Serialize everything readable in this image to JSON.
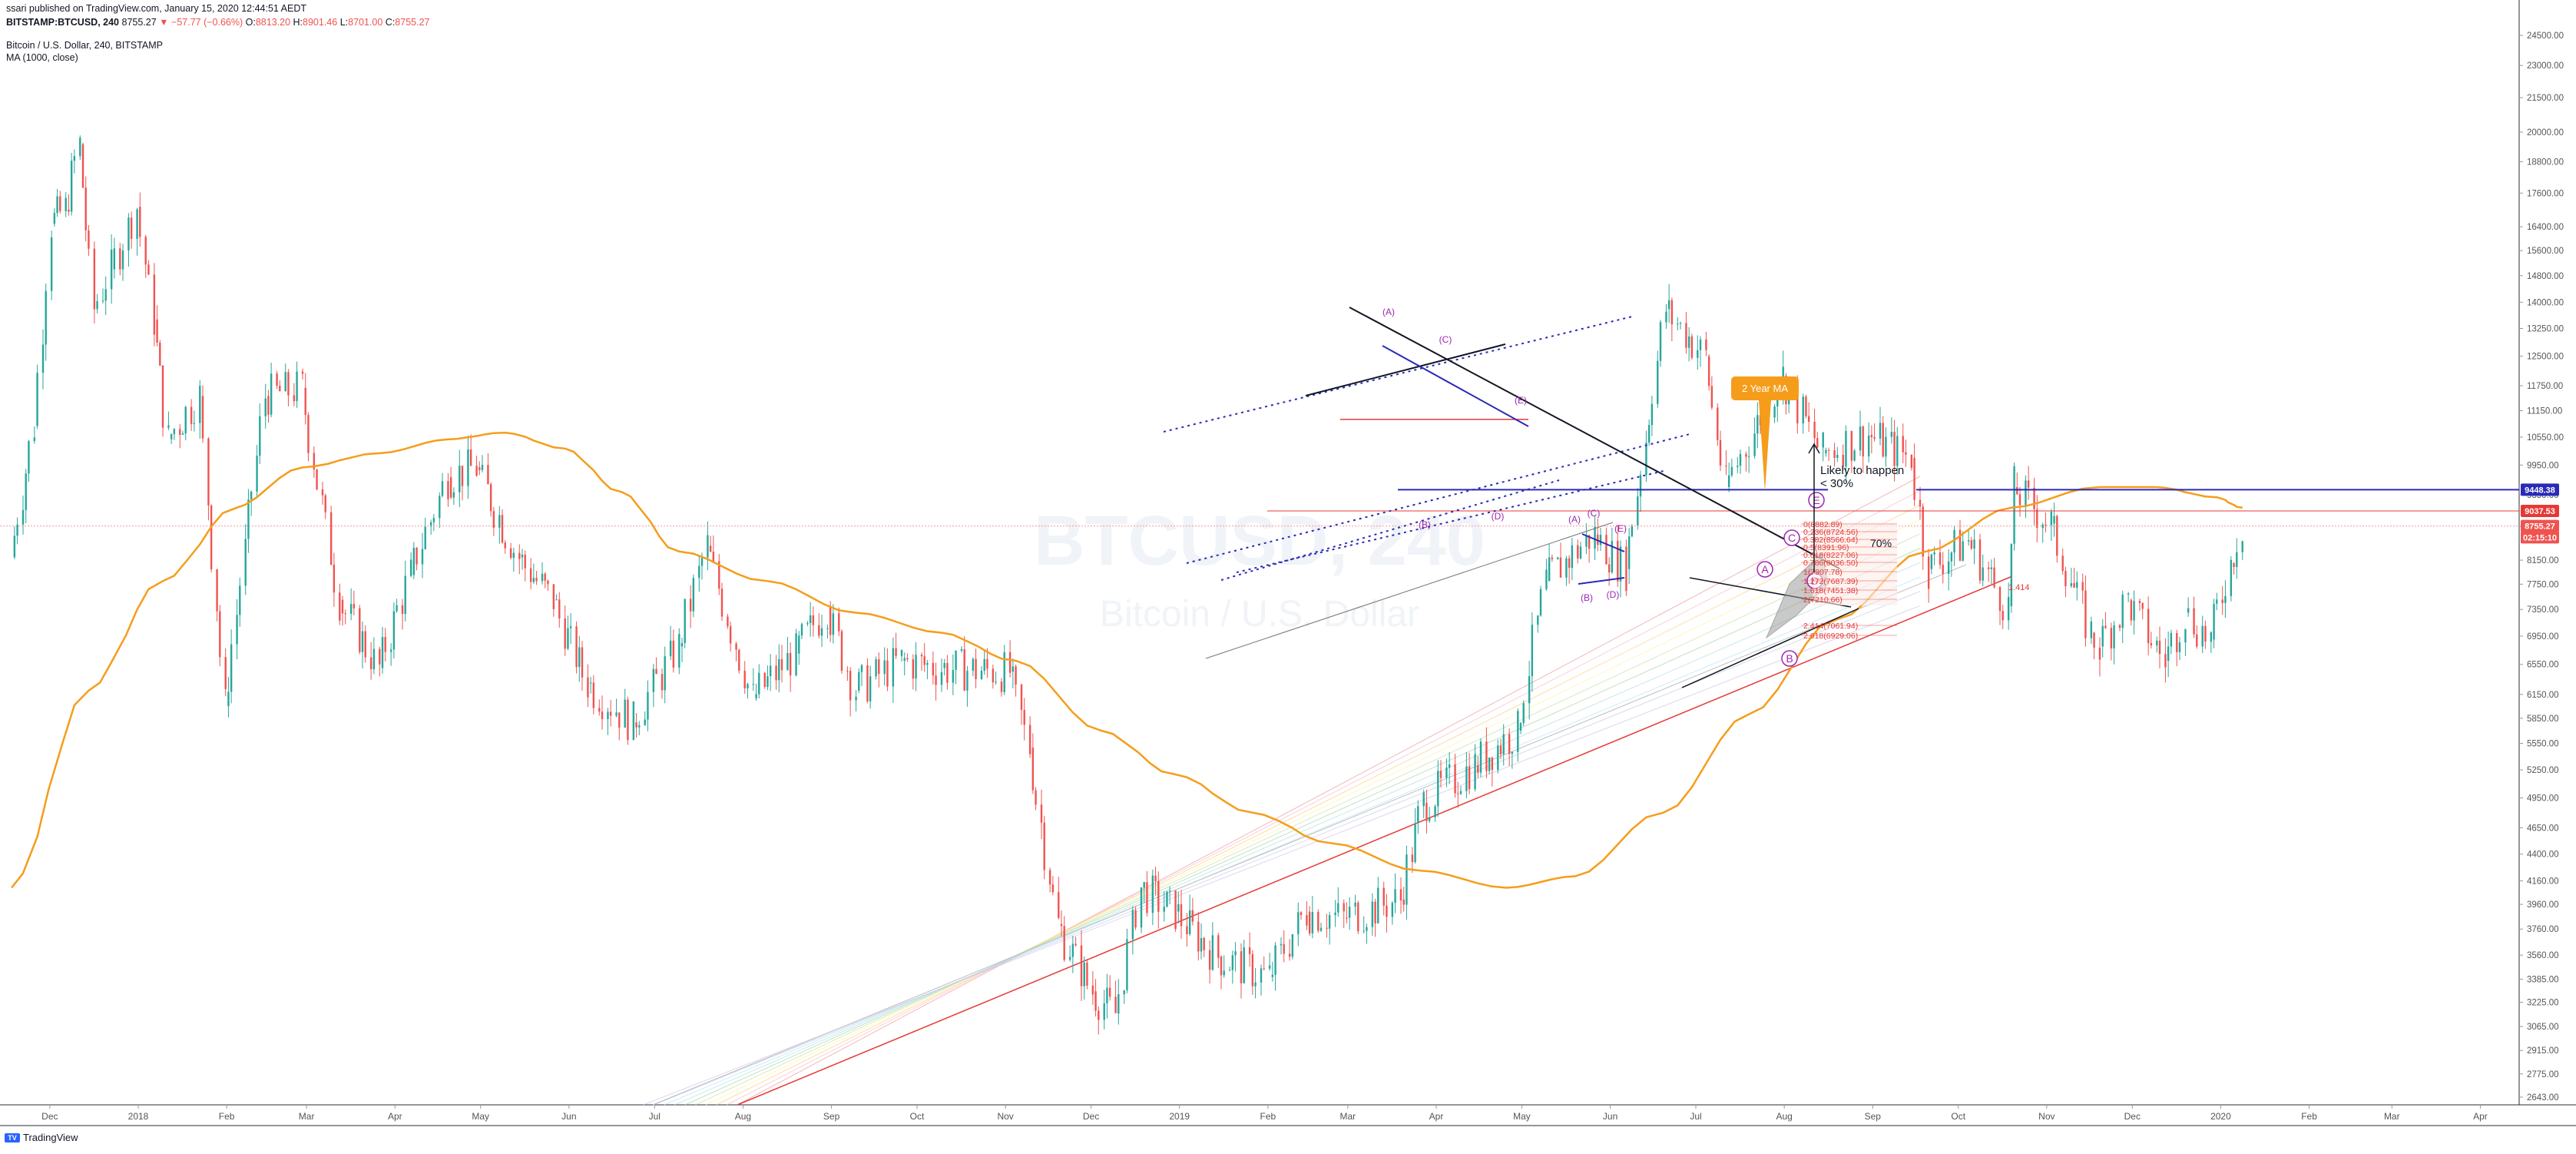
{
  "header": {
    "publisher_line": "ssari published on TradingView.com, January 15, 2020 12:44:51 AEDT",
    "symbol": "BITSTAMP:BTCUSD, 240",
    "last": "8755.27",
    "change": "−57.77 (−0.66%)",
    "o_label": "O:",
    "o_value": "8813.20",
    "h_label": "H:",
    "h_value": "8901.46",
    "l_label": "L:",
    "l_value": "8701.00",
    "c_label": "C:",
    "c_value": "8755.27",
    "legend_title": "Bitcoin / U.S. Dollar, 240, BITSTAMP",
    "legend_ma": "MA (1000, close)"
  },
  "watermark": {
    "symbol": "BTCUSD, 240",
    "name": "Bitcoin / U.S. Dollar"
  },
  "footer": {
    "brand": "TradingView"
  },
  "colors": {
    "candle_up": "#26a69a",
    "candle_down": "#ef5350",
    "ma": "#f59d1b",
    "trendline": "#131722",
    "blue_line": "#2a2ab8",
    "wave_label": "#9c27b0",
    "fib_red": "#e53935",
    "callout_bg": "#f59d1b"
  },
  "chart_data": {
    "type": "line",
    "title": "Bitcoin / U.S. Dollar, 240, BITSTAMP",
    "xlabel": "",
    "ylabel": "",
    "y_scale": "log",
    "ylim": [
      2550,
      25500
    ],
    "x_ticks": [
      "Dec",
      "2018",
      "Feb",
      "Mar",
      "Apr",
      "May",
      "Jun",
      "Jul",
      "Aug",
      "Sep",
      "Oct",
      "Nov",
      "Dec",
      "2019",
      "Feb",
      "Mar",
      "Apr",
      "May",
      "Jun",
      "Jul",
      "Aug",
      "Sep",
      "Oct",
      "Nov",
      "Dec",
      "2020",
      "Feb",
      "Mar",
      "Apr"
    ],
    "y_ticks": [
      "24500.00",
      "23000.00",
      "21500.00",
      "20000.00",
      "18800.00",
      "17600.00",
      "16400.00",
      "15600.00",
      "14800.00",
      "14000.00",
      "13250.00",
      "12500.00",
      "11750.00",
      "11150.00",
      "10550.00",
      "9950.00",
      "9350.00",
      "8750.00",
      "8150.00",
      "7750.00",
      "7350.00",
      "6950.00",
      "6550.00",
      "6150.00",
      "5850.00",
      "5550.00",
      "5250.00",
      "4950.00",
      "4650.00",
      "4400.00",
      "4160.00",
      "3960.00",
      "3760.00",
      "3560.00",
      "3385.00",
      "3225.00",
      "3065.00",
      "2915.00",
      "2775.00",
      "2643.00"
    ],
    "series": [
      {
        "name": "BTCUSD",
        "points": [
          [
            "2017-11-23",
            8200
          ],
          [
            "2017-12-01",
            10800
          ],
          [
            "2017-12-07",
            16500
          ],
          [
            "2017-12-12",
            17000
          ],
          [
            "2017-12-17",
            19500
          ],
          [
            "2017-12-22",
            13800
          ],
          [
            "2017-12-28",
            15000
          ],
          [
            "2018-01-06",
            17100
          ],
          [
            "2018-01-12",
            13500
          ],
          [
            "2018-01-17",
            10500
          ],
          [
            "2018-01-28",
            11500
          ],
          [
            "2018-02-06",
            6000
          ],
          [
            "2018-02-20",
            11500
          ],
          [
            "2018-03-05",
            11700
          ],
          [
            "2018-03-18",
            7500
          ],
          [
            "2018-04-01",
            6500
          ],
          [
            "2018-04-12",
            7900
          ],
          [
            "2018-04-25",
            9700
          ],
          [
            "2018-05-05",
            9900
          ],
          [
            "2018-05-20",
            8200
          ],
          [
            "2018-06-01",
            7500
          ],
          [
            "2018-06-13",
            6300
          ],
          [
            "2018-06-29",
            5800
          ],
          [
            "2018-07-15",
            6800
          ],
          [
            "2018-07-25",
            8400
          ],
          [
            "2018-08-10",
            6100
          ],
          [
            "2018-08-25",
            6700
          ],
          [
            "2018-09-05",
            7400
          ],
          [
            "2018-09-15",
            6200
          ],
          [
            "2018-10-01",
            6600
          ],
          [
            "2018-10-15",
            6500
          ],
          [
            "2018-11-08",
            6450
          ],
          [
            "2018-11-15",
            5500
          ],
          [
            "2018-11-25",
            3800
          ],
          [
            "2018-12-07",
            3300
          ],
          [
            "2018-12-15",
            3150
          ],
          [
            "2018-12-24",
            4100
          ],
          [
            "2019-01-05",
            3900
          ],
          [
            "2019-01-20",
            3550
          ],
          [
            "2019-02-07",
            3400
          ],
          [
            "2019-02-20",
            3900
          ],
          [
            "2019-03-05",
            3850
          ],
          [
            "2019-03-25",
            4000
          ],
          [
            "2019-04-02",
            4900
          ],
          [
            "2019-04-20",
            5300
          ],
          [
            "2019-05-05",
            5700
          ],
          [
            "2019-05-15",
            7800
          ],
          [
            "2019-06-01",
            8600
          ],
          [
            "2019-06-12",
            8000
          ],
          [
            "2019-06-26",
            13800
          ],
          [
            "2019-07-10",
            12500
          ],
          [
            "2019-07-17",
            9500
          ],
          [
            "2019-08-06",
            12000
          ],
          [
            "2019-08-20",
            10200
          ],
          [
            "2019-09-05",
            10600
          ],
          [
            "2019-09-20",
            10100
          ],
          [
            "2019-09-26",
            8000
          ],
          [
            "2019-10-10",
            8500
          ],
          [
            "2019-10-24",
            7400
          ],
          [
            "2019-10-26",
            9500
          ],
          [
            "2019-11-08",
            8800
          ],
          [
            "2019-11-22",
            7000
          ],
          [
            "2019-11-25",
            6800
          ],
          [
            "2019-12-05",
            7500
          ],
          [
            "2019-12-18",
            6600
          ],
          [
            "2019-12-25",
            7300
          ],
          [
            "2020-01-03",
            6900
          ],
          [
            "2020-01-10",
            8100
          ],
          [
            "2020-01-14",
            8755
          ]
        ]
      },
      {
        "name": "MA (1000, close)",
        "points": [
          [
            "2017-11-23",
            4100
          ],
          [
            "2017-12-20",
            6200
          ],
          [
            "2018-01-15",
            7800
          ],
          [
            "2018-02-10",
            9100
          ],
          [
            "2018-03-05",
            9900
          ],
          [
            "2018-04-01",
            10200
          ],
          [
            "2018-04-25",
            10500
          ],
          [
            "2018-05-15",
            10650
          ],
          [
            "2018-06-05",
            10300
          ],
          [
            "2018-06-25",
            9400
          ],
          [
            "2018-07-15",
            8300
          ],
          [
            "2018-08-15",
            7800
          ],
          [
            "2018-09-15",
            7300
          ],
          [
            "2018-10-15",
            7000
          ],
          [
            "2018-11-10",
            6600
          ],
          [
            "2018-12-10",
            5700
          ],
          [
            "2019-01-05",
            5200
          ],
          [
            "2019-02-01",
            4800
          ],
          [
            "2019-03-01",
            4500
          ],
          [
            "2019-04-01",
            4250
          ],
          [
            "2019-05-01",
            4100
          ],
          [
            "2019-05-25",
            4200
          ],
          [
            "2019-06-25",
            4800
          ],
          [
            "2019-07-25",
            5900
          ],
          [
            "2019-08-25",
            7200
          ],
          [
            "2019-09-25",
            8300
          ],
          [
            "2019-10-25",
            9100
          ],
          [
            "2019-11-25",
            9500
          ],
          [
            "2019-12-15",
            9500
          ],
          [
            "2020-01-05",
            9300
          ],
          [
            "2020-01-14",
            9100
          ]
        ]
      }
    ],
    "price_markers": [
      {
        "label": "9448.38",
        "value": 9448.38,
        "color": "#2a2ab8"
      },
      {
        "label": "9037.53",
        "value": 9037.53,
        "color": "#e53935"
      },
      {
        "label": "8755.27",
        "value": 8755.27,
        "color": "#ef5350"
      },
      {
        "label": "02:15:10",
        "value": 8550,
        "color": "#ef5350"
      }
    ],
    "annotations": {
      "callout": "2 Year MA",
      "note_line1": "Likely to happen",
      "note_line2": "< 30%",
      "note_pct": "70%",
      "ext_label": "1.414",
      "wave_labels_small": [
        "(A)",
        "(C)",
        "(B)",
        "(D)",
        "(E)",
        "(A)",
        "(C)",
        "(E)",
        "(B)",
        "(D)"
      ],
      "wave_labels_circled": [
        "A",
        "B",
        "C",
        "D",
        "E"
      ],
      "fib_levels": [
        "0(8882.89)",
        "0.236(8724.56)",
        "0.382(8566.64)",
        "0.5(8391.96)",
        "0.618(8227.06)",
        "0.786(8036.50)",
        "1(7907.78)",
        "1.272(7687.39)",
        "1.618(7451.38)",
        "2(7210.66)",
        "2.414(7061.94)",
        "2.618(6929.06)"
      ]
    }
  }
}
